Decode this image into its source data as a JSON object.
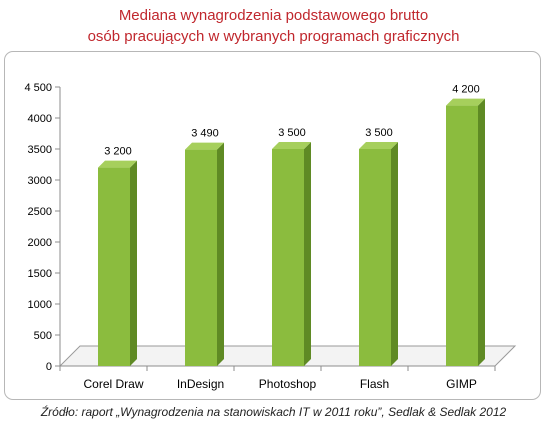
{
  "title_line1": "Mediana wynagrodzenia podstawowego brutto",
  "title_line2": "osób pracujących w wybranych programach graficznych",
  "source": "Źródło: raport „Wynagrodzenia na stanowiskach IT w 2011 roku”, Sedlak & Sedlak 2012",
  "colors": {
    "title": "#c0272d",
    "bar_front": "#8bbc3e",
    "bar_side": "#5f8a24",
    "bar_top": "#a6cf5c",
    "floor": "#f3f3f3"
  },
  "chart_data": {
    "type": "bar",
    "title": "Mediana wynagrodzenia podstawowego brutto osób pracujących w wybranych programach graficznych",
    "categories": [
      "Corel Draw",
      "InDesign",
      "Photoshop",
      "Flash",
      "GIMP"
    ],
    "values": [
      3200,
      3490,
      3500,
      3500,
      4200
    ],
    "value_labels": [
      "3 200",
      "3 490",
      "3 500",
      "3 500",
      "4 200"
    ],
    "yticks": [
      0,
      500,
      1000,
      1500,
      2000,
      2500,
      3000,
      3500,
      4000,
      4500
    ],
    "ytick_labels": [
      "0",
      "500",
      "1000",
      "1500",
      "2000",
      "2500",
      "3000",
      "3500",
      "4000",
      "4 500"
    ],
    "ylim": [
      0,
      4500
    ],
    "xlabel": "",
    "ylabel": "",
    "grid": false,
    "legend": "none"
  }
}
